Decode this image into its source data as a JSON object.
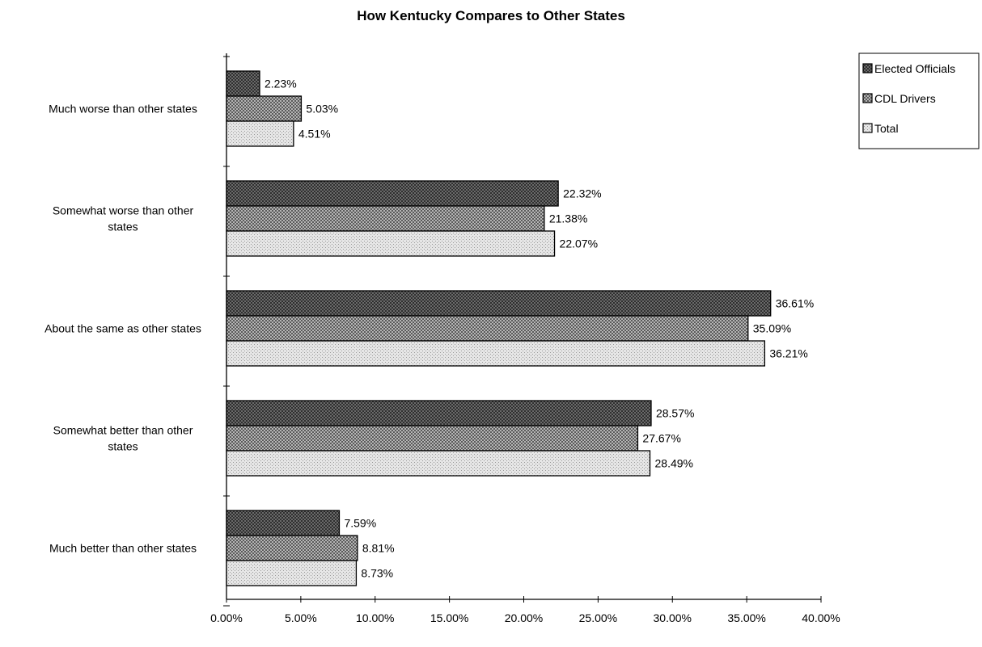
{
  "chart_data": {
    "type": "bar",
    "orientation": "horizontal",
    "title": "How Kentucky Compares to Other States",
    "xlabel": "",
    "ylabel": "",
    "xlim": [
      0,
      40
    ],
    "tick_step": 5,
    "tick_labels": [
      "0.00%",
      "5.00%",
      "10.00%",
      "15.00%",
      "20.00%",
      "25.00%",
      "30.00%",
      "35.00%",
      "40.00%"
    ],
    "categories": [
      [
        "Much worse than other states"
      ],
      [
        "Somewhat worse than other",
        "states"
      ],
      [
        "About the same as other states"
      ],
      [
        "Somewhat better than other",
        "states"
      ],
      [
        "Much better than other states"
      ]
    ],
    "series": [
      {
        "name": "Elected Officials",
        "values": [
          2.23,
          22.32,
          36.61,
          28.57,
          7.59
        ],
        "labels": [
          "2.23%",
          "22.32%",
          "36.61%",
          "28.57%",
          "7.59%"
        ],
        "color": "#555555",
        "pattern": "dark-check"
      },
      {
        "name": "CDL Drivers",
        "values": [
          5.03,
          21.38,
          35.09,
          27.67,
          8.81
        ],
        "labels": [
          "5.03%",
          "21.38%",
          "35.09%",
          "27.67%",
          "8.81%"
        ],
        "color": "#8a8a8a",
        "pattern": "medium-check"
      },
      {
        "name": "Total",
        "values": [
          4.51,
          22.07,
          36.21,
          28.49,
          8.73
        ],
        "labels": [
          "4.51%",
          "22.07%",
          "36.21%",
          "28.49%",
          "8.73%"
        ],
        "color": "#d4d4d4",
        "pattern": "light-dots"
      }
    ],
    "legend_position": "top-right",
    "grid": false
  }
}
